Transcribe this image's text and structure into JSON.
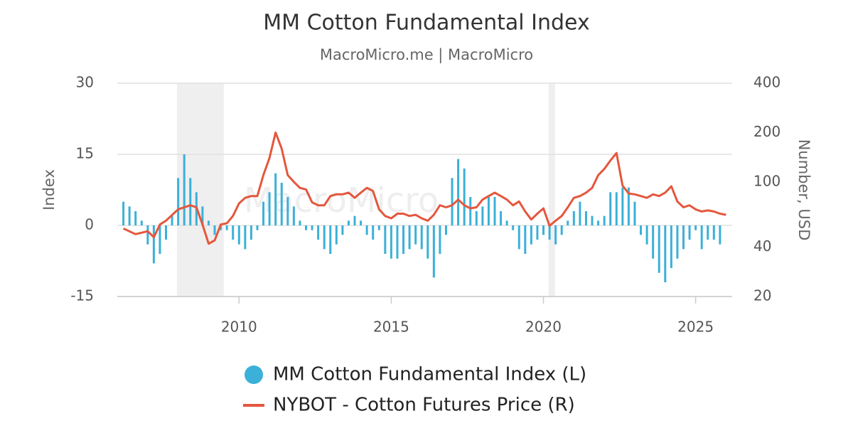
{
  "chart_data": {
    "type": "combo",
    "title": "MM Cotton Fundamental Index",
    "subtitle": "MacroMicro.me | MacroMicro",
    "watermark": "MacroMicro",
    "y_label": "Index",
    "y2_label": "Number, USD",
    "xlim": [
      2006,
      2026.2
    ],
    "xticks": [
      2010,
      2015,
      2020,
      2025
    ],
    "ylim": [
      -15,
      30
    ],
    "yticks": [
      -15,
      0,
      15,
      30
    ],
    "y2lim": [
      20,
      400
    ],
    "y2ticks": [
      20,
      40,
      100,
      200,
      400
    ],
    "y2_log": true,
    "grid": true,
    "shaded_periods": [
      [
        2007.96,
        2009.5
      ],
      [
        2020.17,
        2020.38
      ]
    ],
    "series": [
      {
        "name": "MM Cotton Fundamental Index (L)",
        "type": "bar",
        "color": "#3bb0d9",
        "x": [
          2006.2,
          2006.4,
          2006.6,
          2006.8,
          2007.0,
          2007.2,
          2007.4,
          2007.6,
          2007.8,
          2008.0,
          2008.2,
          2008.4,
          2008.6,
          2008.8,
          2009.0,
          2009.2,
          2009.4,
          2009.6,
          2009.8,
          2010.0,
          2010.2,
          2010.4,
          2010.6,
          2010.8,
          2011.0,
          2011.2,
          2011.4,
          2011.6,
          2011.8,
          2012.0,
          2012.2,
          2012.4,
          2012.6,
          2012.8,
          2013.0,
          2013.2,
          2013.4,
          2013.6,
          2013.8,
          2014.0,
          2014.2,
          2014.4,
          2014.6,
          2014.8,
          2015.0,
          2015.2,
          2015.4,
          2015.6,
          2015.8,
          2016.0,
          2016.2,
          2016.4,
          2016.6,
          2016.8,
          2017.0,
          2017.2,
          2017.4,
          2017.6,
          2017.8,
          2018.0,
          2018.2,
          2018.4,
          2018.6,
          2018.8,
          2019.0,
          2019.2,
          2019.4,
          2019.6,
          2019.8,
          2020.0,
          2020.2,
          2020.4,
          2020.6,
          2020.8,
          2021.0,
          2021.2,
          2021.4,
          2021.6,
          2021.8,
          2022.0,
          2022.2,
          2022.4,
          2022.6,
          2022.8,
          2023.0,
          2023.2,
          2023.4,
          2023.6,
          2023.8,
          2024.0,
          2024.2,
          2024.4,
          2024.6,
          2024.8,
          2025.0,
          2025.2,
          2025.4,
          2025.6,
          2025.8
        ],
        "values": [
          5,
          4,
          3,
          1,
          -4,
          -8,
          -6,
          -3,
          2,
          10,
          15,
          10,
          7,
          4,
          1,
          -2,
          -1,
          -1,
          -3,
          -4,
          -5,
          -3,
          -1,
          5,
          7,
          11,
          9,
          6,
          4,
          1,
          -1,
          -1,
          -3,
          -5,
          -6,
          -4,
          -2,
          1,
          2,
          1,
          -2,
          -3,
          -1,
          -6,
          -7,
          -7,
          -6,
          -5,
          -4,
          -5,
          -7,
          -11,
          -6,
          -2,
          10,
          14,
          12,
          6,
          3,
          4,
          6,
          6,
          3,
          1,
          -1,
          -5,
          -6,
          -4,
          -3,
          -2,
          -3,
          -4,
          -2,
          1,
          3,
          5,
          3,
          2,
          1,
          2,
          7,
          7,
          8,
          8,
          5,
          -2,
          -4,
          -7,
          -10,
          -12,
          -9,
          -7,
          -5,
          -3,
          -1,
          -5,
          -3,
          -3,
          -4
        ]
      },
      {
        "name": "NYBOT - Cotton Futures Price (R)",
        "type": "line",
        "color": "#e4573d",
        "axis": "y2",
        "x": [
          2006.2,
          2006.6,
          2007.0,
          2007.2,
          2007.4,
          2007.6,
          2008.0,
          2008.4,
          2008.6,
          2008.8,
          2009.0,
          2009.2,
          2009.4,
          2009.6,
          2009.8,
          2010.0,
          2010.2,
          2010.4,
          2010.6,
          2010.8,
          2011.0,
          2011.2,
          2011.4,
          2011.6,
          2011.8,
          2012.0,
          2012.2,
          2012.4,
          2012.6,
          2012.8,
          2013.0,
          2013.2,
          2013.4,
          2013.6,
          2013.8,
          2014.0,
          2014.2,
          2014.4,
          2014.6,
          2014.8,
          2015.0,
          2015.2,
          2015.4,
          2015.6,
          2015.8,
          2016.0,
          2016.2,
          2016.4,
          2016.6,
          2016.8,
          2017.0,
          2017.2,
          2017.4,
          2017.6,
          2017.8,
          2018.0,
          2018.2,
          2018.4,
          2018.6,
          2018.8,
          2019.0,
          2019.2,
          2019.4,
          2019.6,
          2019.8,
          2020.0,
          2020.2,
          2020.4,
          2020.6,
          2020.8,
          2021.0,
          2021.2,
          2021.4,
          2021.6,
          2021.8,
          2022.0,
          2022.2,
          2022.4,
          2022.6,
          2022.8,
          2023.0,
          2023.2,
          2023.4,
          2023.6,
          2023.8,
          2024.0,
          2024.2,
          2024.4,
          2024.6,
          2024.8,
          2025.0,
          2025.2,
          2025.4,
          2025.6,
          2025.8,
          2026.0
        ],
        "values": [
          52,
          48,
          50,
          46,
          55,
          58,
          68,
          72,
          70,
          55,
          42,
          44,
          55,
          56,
          62,
          74,
          80,
          82,
          82,
          110,
          140,
          200,
          160,
          110,
          100,
          92,
          90,
          75,
          72,
          72,
          82,
          84,
          84,
          86,
          80,
          86,
          92,
          88,
          68,
          62,
          60,
          64,
          64,
          62,
          63,
          60,
          58,
          63,
          72,
          70,
          72,
          78,
          72,
          69,
          70,
          78,
          82,
          86,
          82,
          78,
          72,
          76,
          66,
          59,
          64,
          69,
          54,
          58,
          62,
          70,
          80,
          82,
          86,
          92,
          110,
          120,
          135,
          150,
          95,
          85,
          84,
          82,
          80,
          84,
          82,
          86,
          94,
          76,
          70,
          72,
          68,
          66,
          67,
          66,
          64,
          63
        ]
      }
    ]
  }
}
